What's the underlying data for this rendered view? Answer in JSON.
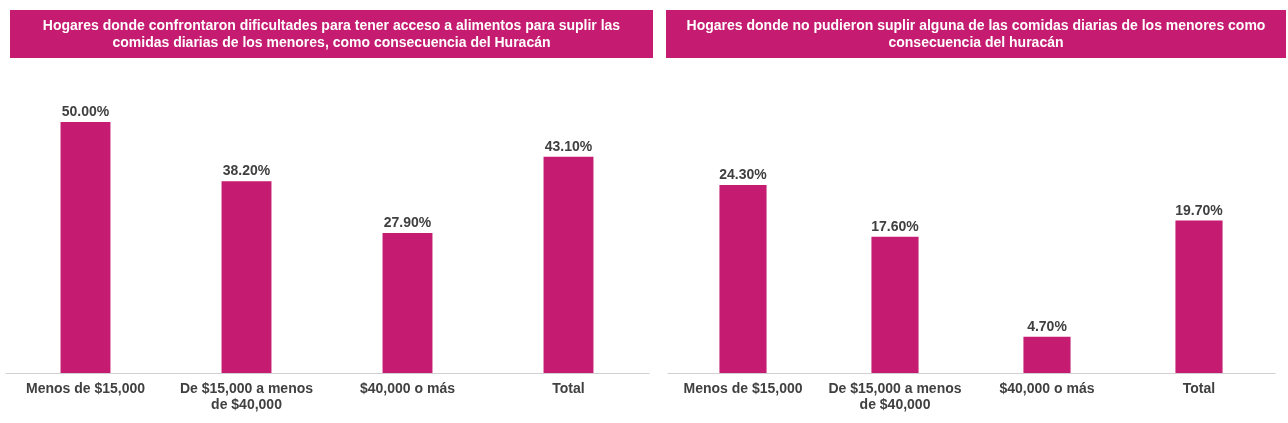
{
  "chart_data": [
    {
      "type": "bar",
      "title": "Hogares donde confrontaron dificultades para tener acceso a alimentos para suplir las comidas diarias de los menores, como consecuencia del Huracán",
      "categories": [
        "Menos de $15,000",
        "De $15,000 a menos de $40,000",
        "$40,000 o más",
        "Total"
      ],
      "values": [
        50.0,
        38.2,
        27.9,
        43.1
      ],
      "value_labels": [
        "50.00%",
        "38.20%",
        "27.90%",
        "43.10%"
      ],
      "color": "#c51b71",
      "grid": false,
      "legend": false
    },
    {
      "type": "bar",
      "title": "Hogares donde no pudieron suplir alguna de las comidas diarias de los menores como consecuencia del huracán",
      "categories": [
        "Menos de $15,000",
        "De $15,000 a menos de $40,000",
        "$40,000 o más",
        "Total"
      ],
      "values": [
        24.3,
        17.6,
        4.7,
        19.7
      ],
      "value_labels": [
        "24.30%",
        "17.60%",
        "4.70%",
        "19.70%"
      ],
      "color": "#c51b71",
      "grid": false,
      "legend": false
    }
  ]
}
